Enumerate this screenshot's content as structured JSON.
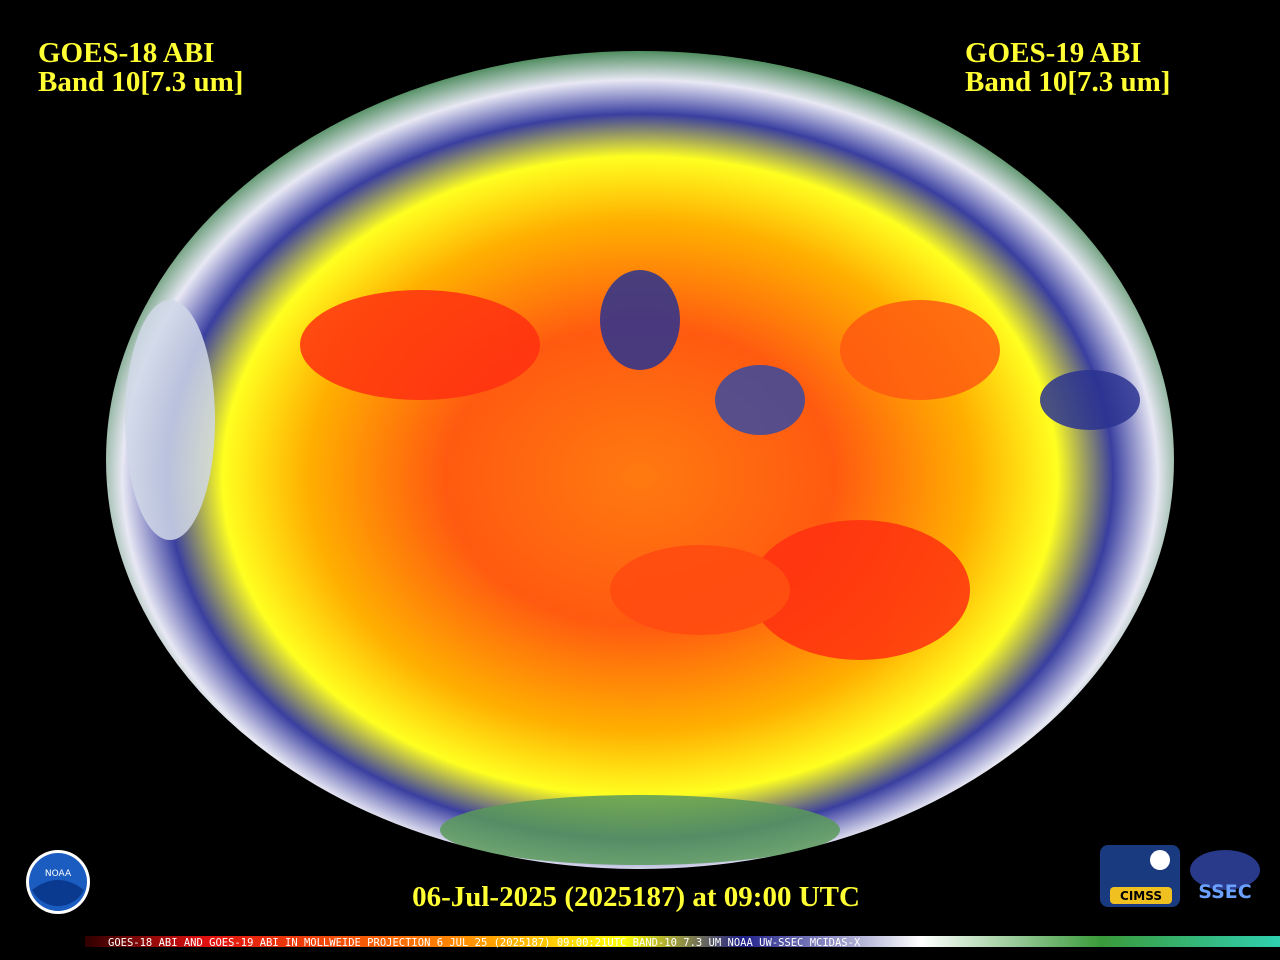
{
  "header": {
    "left": {
      "line1": "GOES-18 ABI",
      "line2": "Band 10[7.3 um]"
    },
    "right": {
      "line1": "GOES-19 ABI",
      "line2": "Band 10[7.3 um]"
    }
  },
  "timestamp": "06-Jul-2025 (2025187) at 09:00 UTC",
  "footer": "GOES-18 ABI AND GOES-19 ABI IN MOLLWEIDE PROJECTION  6 JUL 25 (2025187) 09:00:21UTC BAND-10 7.3 UM NOAA UW-SSEC MCIDAS-X",
  "logos": {
    "noaa": "NOAA",
    "cimss": "CIMSS",
    "ssec": "SSEC"
  }
}
